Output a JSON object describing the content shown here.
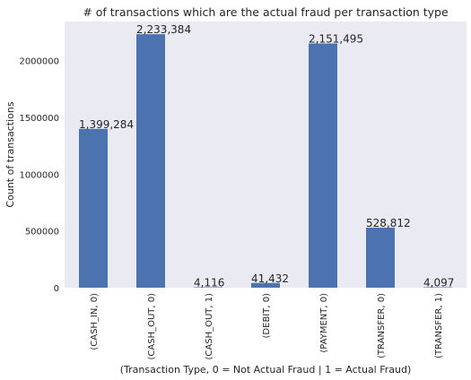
{
  "chart_data": {
    "type": "bar",
    "title": "# of transactions which are the actual fraud per transaction type",
    "xlabel": "(Transaction Type, 0 = Not Actual Fraud | 1 = Actual Fraud)",
    "ylabel": "Count of transactions",
    "categories": [
      "(CASH_IN, 0)",
      "(CASH_OUT, 0)",
      "(CASH_OUT, 1)",
      "(DEBIT, 0)",
      "(PAYMENT, 0)",
      "(TRANSFER, 0)",
      "(TRANSFER, 1)"
    ],
    "values": [
      1399284,
      2233384,
      4116,
      41432,
      2151495,
      528812,
      4097
    ],
    "value_labels": [
      "1,399,284",
      "2,233,384",
      "4,116",
      "41,432",
      "2,151,495",
      "528,812",
      "4,097"
    ],
    "ylim": [
      0,
      2345053
    ],
    "yticks": [
      0,
      500000,
      1000000,
      1500000,
      2000000
    ],
    "ytick_labels": [
      "0",
      "500000",
      "1000000",
      "1500000",
      "2000000"
    ],
    "grid": false,
    "legend": "none",
    "colors": {
      "bar": "#4c72b0",
      "plot_background": "#eaeaf2",
      "text": "#262626"
    }
  }
}
